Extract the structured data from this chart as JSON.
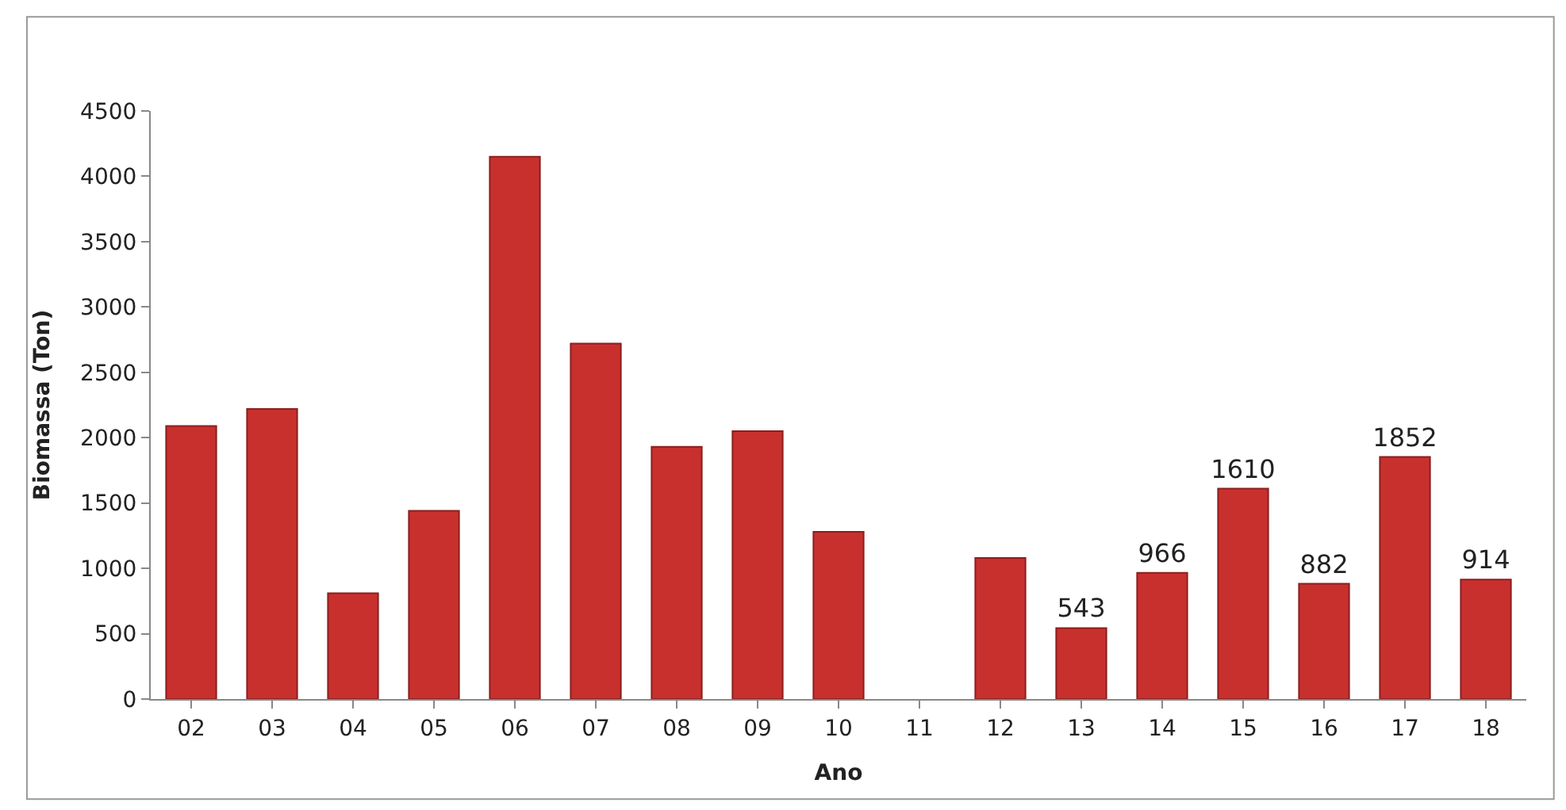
{
  "chart_data": {
    "type": "bar",
    "xlabel": "Ano",
    "ylabel": "Biomassa (Ton)",
    "categories": [
      "02",
      "03",
      "04",
      "05",
      "06",
      "07",
      "08",
      "09",
      "10",
      "11",
      "12",
      "13",
      "14",
      "15",
      "16",
      "17",
      "18"
    ],
    "values": [
      2090,
      2220,
      810,
      1440,
      4150,
      2720,
      1930,
      2050,
      1280,
      null,
      1080,
      543,
      966,
      1610,
      882,
      1852,
      914
    ],
    "value_labels": [
      null,
      null,
      null,
      null,
      null,
      null,
      null,
      null,
      null,
      null,
      null,
      "543",
      "966",
      "1610",
      "882",
      "1852",
      "914"
    ],
    "color": "#c8302e",
    "ylim": [
      0,
      4500
    ],
    "yticks": [
      0,
      500,
      1000,
      1500,
      2000,
      2500,
      3000,
      3500,
      4000,
      4500
    ]
  }
}
